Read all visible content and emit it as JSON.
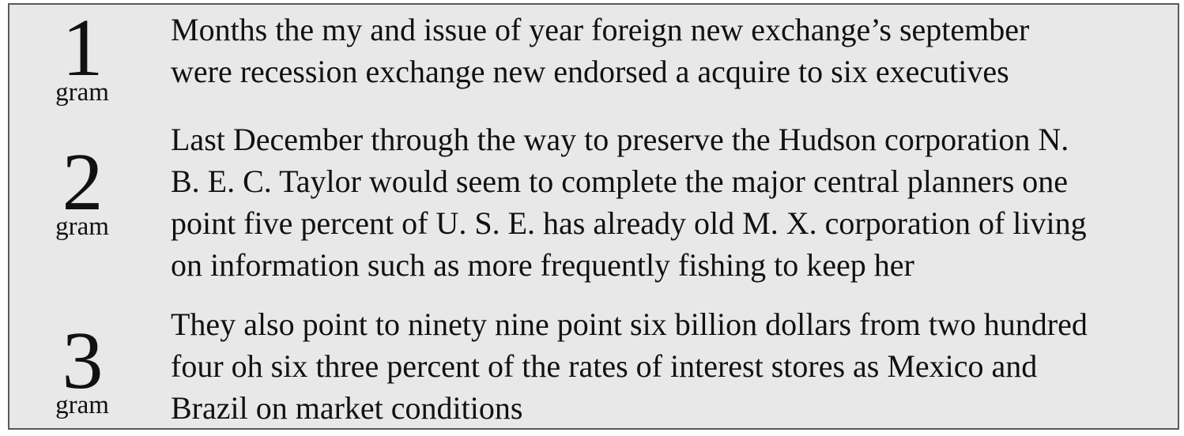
{
  "rows": [
    {
      "number": "1",
      "unit": "gram",
      "lines": [
        "Months the my and issue of year foreign new exchange’s september",
        "were recession exchange new endorsed a acquire to six executives"
      ]
    },
    {
      "number": "2",
      "unit": "gram",
      "lines": [
        "Last December through the way to preserve the Hudson corporation N.",
        "B. E. C. Taylor would seem to complete the major central planners one",
        "point five percent of U. S. E. has already old M. X. corporation of living",
        "on information such as more frequently fishing to keep her"
      ]
    },
    {
      "number": "3",
      "unit": "gram",
      "lines": [
        "They also point to ninety nine point six billion dollars from two hundred",
        "four oh six three percent of the rates of interest stores as Mexico and",
        "Brazil on market conditions"
      ]
    }
  ]
}
